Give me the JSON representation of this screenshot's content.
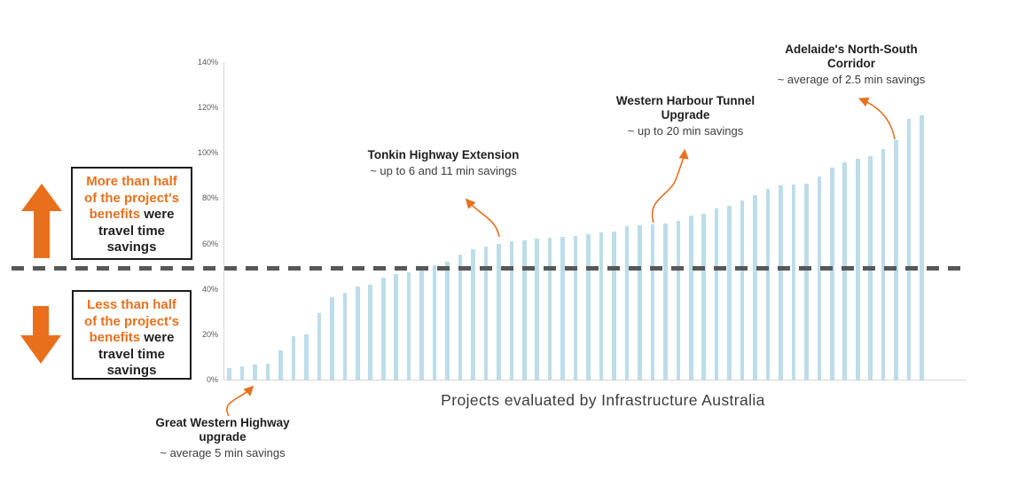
{
  "chart_data": {
    "type": "bar",
    "title": "",
    "xlabel": "Projects evaluated by Infrastructure Australia",
    "ylabel": "",
    "ylim": [
      0,
      140
    ],
    "y_tick_labels": [
      "0%",
      "20%",
      "40%",
      "60%",
      "80%",
      "100%",
      "120%",
      "140%"
    ],
    "y_tick_values": [
      0,
      20,
      40,
      60,
      80,
      100,
      120,
      140
    ],
    "grid": "off",
    "legend": "none",
    "values": [
      5,
      6,
      6.5,
      7,
      13,
      19,
      20,
      29.5,
      36.5,
      38.5,
      41,
      42,
      45,
      46.5,
      47.5,
      50,
      50.5,
      52,
      55,
      57.5,
      58.5,
      60,
      61,
      61.5,
      62,
      62.5,
      63,
      63.5,
      64,
      65,
      65.5,
      67.5,
      68,
      68.5,
      69,
      70,
      72.5,
      73,
      75.5,
      76.5,
      79,
      81.5,
      84,
      85.5,
      86,
      86.5,
      89.5,
      93.5,
      96,
      97.5,
      98.5,
      101.5,
      105.5,
      115,
      116.5
    ],
    "reference_line": {
      "value": 49,
      "style": "dashed"
    }
  },
  "annotations": [
    {
      "id": "great-western",
      "title": "Great Western Highway upgrade",
      "subtitle": "~ average 5 min savings",
      "bar_index": 2,
      "bar_value": 6.5
    },
    {
      "id": "tonkin",
      "title": "Tonkin Highway Extension",
      "subtitle": "~ up to 6 and 11 min savings",
      "bar_index": 21,
      "bar_value": 60
    },
    {
      "id": "western-harbour",
      "title": "Western Harbour Tunnel Upgrade",
      "subtitle": "~ up to 20 min savings",
      "bar_index": 33,
      "bar_value": 68.5
    },
    {
      "id": "adelaide",
      "title": "Adelaide's North-South Corridor",
      "subtitle": "~ average of 2.5 min savings",
      "bar_index": 52,
      "bar_value": 105.5
    }
  ],
  "side_labels": {
    "above": {
      "arrow": "up",
      "lines": [
        [
          {
            "text": "More than half",
            "color": "accent"
          }
        ],
        [
          {
            "text": "of the project's",
            "color": "accent"
          }
        ],
        [
          {
            "text": "benefits",
            "color": "accent"
          },
          {
            "text": " were",
            "color": "dark"
          }
        ],
        [
          {
            "text": "travel time",
            "color": "dark"
          }
        ],
        [
          {
            "text": "savings",
            "color": "dark"
          }
        ]
      ]
    },
    "below": {
      "arrow": "down",
      "lines": [
        [
          {
            "text": "Less than half",
            "color": "accent"
          }
        ],
        [
          {
            "text": "of the project's",
            "color": "accent"
          }
        ],
        [
          {
            "text": "benefits",
            "color": "accent"
          },
          {
            "text": " were",
            "color": "dark"
          }
        ],
        [
          {
            "text": "travel time",
            "color": "dark"
          }
        ],
        [
          {
            "text": "savings",
            "color": "dark"
          }
        ]
      ]
    }
  },
  "colors": {
    "bar": "#BCDDE9",
    "accent_orange": "#E8701D",
    "dashed_line": "#57585A",
    "axis_line": "#D6D6D6",
    "tick_text": "#595959",
    "callout_title_text": "#1F1F1F",
    "callout_subtitle_text": "#3D3D3D",
    "axis_title_text": "#3C3C3C"
  }
}
